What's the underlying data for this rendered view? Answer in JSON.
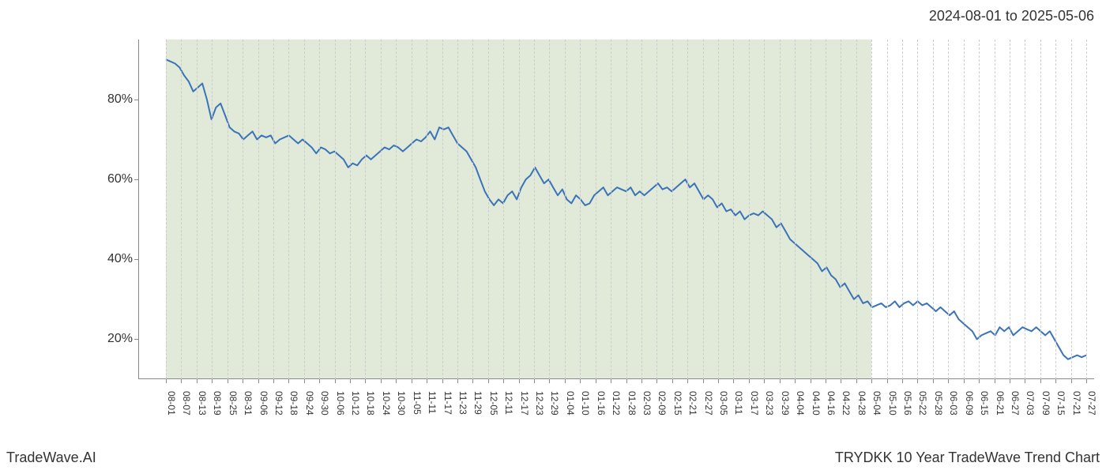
{
  "header": {
    "date_range": "2024-08-01 to 2025-05-06"
  },
  "footer": {
    "left": "TradeWave.AI",
    "right": "TRYDKK 10 Year TradeWave Trend Chart"
  },
  "chart": {
    "type": "line",
    "background_color": "#ffffff",
    "shaded_color": "#e1ead9",
    "grid_color": "#cccccc",
    "axis_color": "#888888",
    "line_color": "#3b73b8",
    "line_width": 2,
    "ylim": [
      10,
      95
    ],
    "y_ticks": [
      {
        "value": 20,
        "label": "20%"
      },
      {
        "value": 40,
        "label": "40%"
      },
      {
        "value": 60,
        "label": "60%"
      },
      {
        "value": 80,
        "label": "80%"
      }
    ],
    "y_label_fontsize": 16,
    "x_label_fontsize": 12,
    "x_labels": [
      "08-01",
      "08-07",
      "08-13",
      "08-19",
      "08-25",
      "08-31",
      "09-06",
      "09-12",
      "09-18",
      "09-24",
      "09-30",
      "10-06",
      "10-12",
      "10-18",
      "10-24",
      "10-30",
      "11-05",
      "11-11",
      "11-17",
      "11-23",
      "11-29",
      "12-05",
      "12-11",
      "12-17",
      "12-23",
      "12-29",
      "01-04",
      "01-10",
      "01-16",
      "01-22",
      "01-28",
      "02-03",
      "02-09",
      "02-15",
      "02-21",
      "02-27",
      "03-05",
      "03-11",
      "03-17",
      "03-23",
      "03-29",
      "04-04",
      "04-10",
      "04-16",
      "04-22",
      "04-28",
      "05-04",
      "05-10",
      "05-16",
      "05-22",
      "05-28",
      "06-03",
      "06-09",
      "06-15",
      "06-21",
      "06-27",
      "07-03",
      "07-09",
      "07-15",
      "07-21",
      "07-27"
    ],
    "shaded_start_index": 0,
    "shaded_end_index": 46,
    "data": [
      90,
      89.5,
      89,
      88,
      86,
      84.5,
      82,
      83,
      84,
      80,
      75,
      78,
      79,
      76,
      73,
      72,
      71.5,
      70,
      71,
      72,
      70,
      71,
      70.5,
      71,
      69,
      70,
      70.5,
      71,
      70,
      69,
      70,
      69,
      68,
      66.5,
      68,
      67.5,
      66.5,
      67,
      66,
      65,
      63,
      64,
      63.5,
      65,
      66,
      65,
      66,
      67,
      68,
      67.5,
      68.5,
      68,
      67,
      68,
      69,
      70,
      69.5,
      70.5,
      72,
      70,
      73,
      72.5,
      73,
      71,
      69,
      68,
      67,
      65,
      63,
      60,
      57,
      55,
      53.5,
      55,
      54,
      56,
      57,
      55,
      58,
      60,
      61,
      63,
      61,
      59,
      60,
      58,
      56,
      57.5,
      55,
      54,
      56,
      55,
      53.5,
      54,
      56,
      57,
      58,
      56,
      57,
      58,
      57.5,
      57,
      58,
      56,
      57,
      56,
      57,
      58,
      59,
      57.5,
      58,
      57,
      58,
      59,
      60,
      58,
      59,
      57,
      55,
      56,
      55,
      53,
      54,
      52,
      52.5,
      51,
      52,
      50,
      51,
      51.5,
      51,
      52,
      51,
      50,
      48,
      49,
      47,
      45,
      44,
      43,
      42,
      41,
      40,
      39,
      37,
      38,
      36,
      35,
      33,
      34,
      32,
      30,
      31,
      29,
      29.5,
      28,
      28.5,
      29,
      28,
      28.5,
      29.5,
      28,
      29,
      29.5,
      28.5,
      29.5,
      28.5,
      29,
      28,
      27,
      28,
      27,
      26,
      27,
      25,
      24,
      23,
      22,
      20,
      21,
      21.5,
      22,
      21,
      23,
      22,
      23,
      21,
      22,
      23,
      22.5,
      22,
      23,
      22,
      21,
      22,
      20,
      18,
      16,
      15,
      15.5,
      16,
      15.5,
      16
    ]
  }
}
